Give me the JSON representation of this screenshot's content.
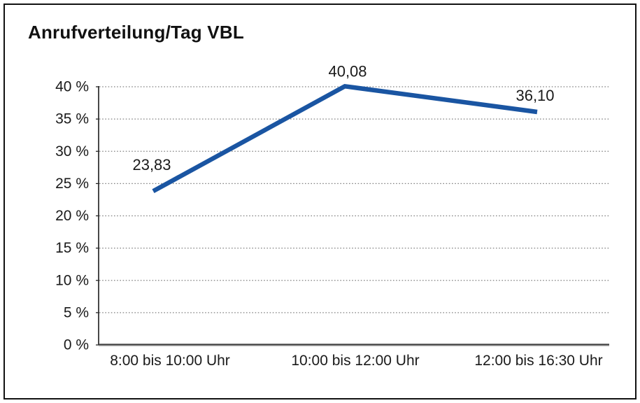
{
  "frame": {
    "background": "#ffffff",
    "border_color": "#111111"
  },
  "chart_data": {
    "type": "line",
    "title": "Anrufverteilung/Tag VBL",
    "categories": [
      "8:00 bis 10:00 Uhr",
      "10:00 bis 12:00 Uhr",
      "12:00 bis 16:30 Uhr"
    ],
    "values": [
      23.83,
      40.08,
      36.1
    ],
    "data_labels": [
      "23,83",
      "40,08",
      "36,10"
    ],
    "ylim": [
      0,
      40
    ],
    "ytick_step": 5,
    "ytick_labels": [
      "0 %",
      "5 %",
      "10 %",
      "15 %",
      "20 %",
      "25 %",
      "30 %",
      "35 %",
      "40 %"
    ],
    "xlabel": "",
    "ylabel": "",
    "grid": "horizontal-dotted",
    "legend": "none",
    "line_color": "#1a55a2",
    "axis_color": "#1a1a1a",
    "gridline_color": "#828282",
    "text_color": "#1a1a1a"
  }
}
